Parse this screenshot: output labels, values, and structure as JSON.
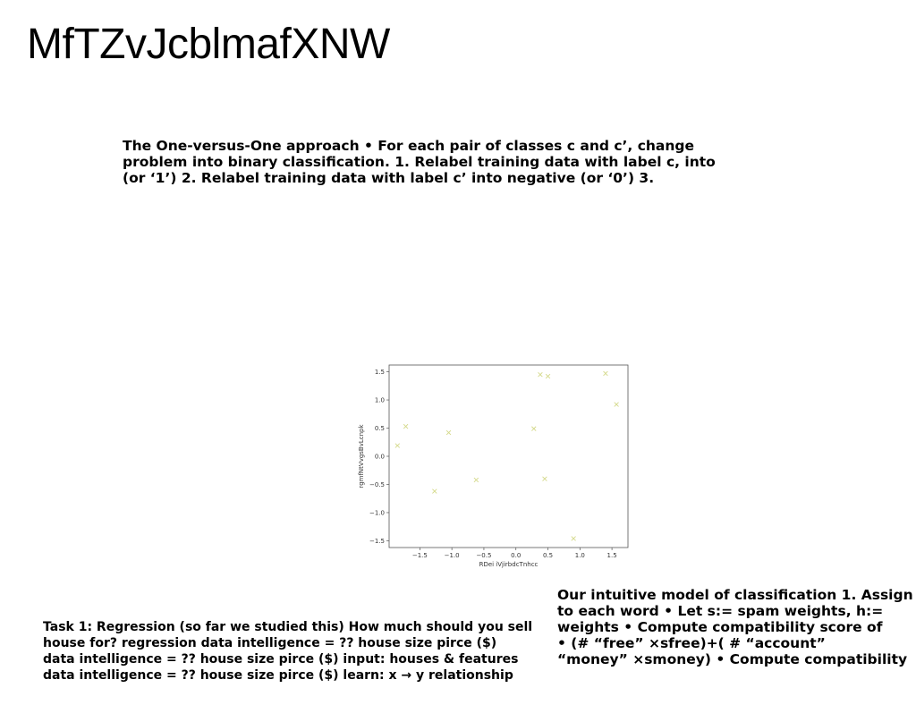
{
  "title": "MfTZvJcblmafXNW",
  "paragraphs": {
    "top": "The One-versus-One approach • For each pair of classes c and c’, change\nproblem into binary classification. 1. Relabel training data with label c, into\n(or ‘1’) 2. Relabel training data with label c’ into negative (or ‘0’) 3.",
    "left": "Task 1: Regression (so far we studied this) How much should you sell\nhouse for? regression data intelligence = ?? house size pirce ($)\ndata intelligence = ?? house size pirce ($) input: houses & features\ndata intelligence = ?? house size pirce ($) learn: x → y relationship",
    "right": "Our intuitive model of classification 1. Assign\nto each word • Let s:= spam weights, h:=\nweights • Compute compatibility score of\n• (# “free” ×sfree)+( # “account”\n“money” ×smoney) • Compute compatibility"
  },
  "chart_data": {
    "type": "scatter",
    "xlabel": "RDei iVjirbdcTnhcc",
    "ylabel": "rgmfNtVvgsBvLcnpk",
    "xlim": [
      -1.98,
      1.75
    ],
    "ylim": [
      -1.62,
      1.62
    ],
    "xticks": [
      -1.5,
      -1.0,
      -0.5,
      0.0,
      0.5,
      1.0,
      1.5
    ],
    "yticks": [
      -1.5,
      -1.0,
      -0.5,
      0.0,
      0.5,
      1.0,
      1.5
    ],
    "xtick_labels": [
      "−1.5",
      "−1.0",
      "−0.5",
      "0.0",
      "0.5",
      "1.0",
      "1.5"
    ],
    "ytick_labels": [
      "−1.5",
      "−1.0",
      "−0.5",
      "0.0",
      "0.5",
      "1.0",
      "1.5"
    ],
    "marker": "x",
    "marker_color": "#d4d98a",
    "grid": false,
    "series": [
      {
        "points": [
          {
            "x": -1.85,
            "y": 0.19
          },
          {
            "x": -1.72,
            "y": 0.53
          },
          {
            "x": -1.27,
            "y": -0.62
          },
          {
            "x": -1.05,
            "y": 0.42
          },
          {
            "x": -0.62,
            "y": -0.42
          },
          {
            "x": 0.28,
            "y": 0.49
          },
          {
            "x": 0.38,
            "y": 1.45
          },
          {
            "x": 0.5,
            "y": 1.42
          },
          {
            "x": 0.45,
            "y": -0.4
          },
          {
            "x": 0.9,
            "y": -1.46
          },
          {
            "x": 1.4,
            "y": 1.47
          },
          {
            "x": 1.57,
            "y": 0.92
          }
        ]
      }
    ]
  }
}
